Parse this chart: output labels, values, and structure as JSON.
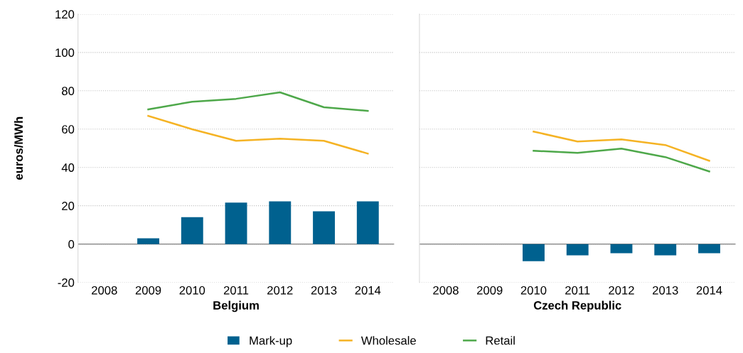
{
  "chart_data": [
    {
      "type": "bar",
      "xlabel": "Belgium",
      "ylabel": "euros/MWh",
      "categories": [
        "2008",
        "2009",
        "2010",
        "2011",
        "2012",
        "2013",
        "2014"
      ],
      "ylim": [
        -20,
        120
      ],
      "yticks": [
        -20,
        0,
        20,
        40,
        60,
        80,
        100,
        120
      ],
      "grid": "y",
      "legend": "bottom",
      "ref_lines": [
        {
          "axis": "y",
          "value": 0,
          "color": "#7f7f7f"
        }
      ],
      "series": [
        {
          "name": "Mark-up",
          "color": "#00618f",
          "values": [
            null,
            3,
            14,
            21.6,
            22.3,
            17.1,
            22.3
          ]
        },
        {
          "name": "Wholesale",
          "type": "line",
          "color": "#f5b324",
          "values": [
            null,
            66.9,
            59.9,
            53.9,
            55,
            53.9,
            47.2
          ]
        },
        {
          "name": "Retail",
          "type": "line",
          "color": "#4ea84a",
          "values": [
            null,
            70.3,
            74.3,
            75.8,
            79.2,
            71.4,
            69.5
          ]
        }
      ]
    },
    {
      "type": "bar",
      "xlabel": "Czech Republic",
      "categories": [
        "2008",
        "2009",
        "2010",
        "2011",
        "2012",
        "2013",
        "2014"
      ],
      "ylim": [
        -20,
        120
      ],
      "yticks": [
        -20,
        0,
        20,
        40,
        60,
        80,
        100,
        120
      ],
      "grid": "y",
      "tick_labels": "x",
      "ref_lines": [
        {
          "axis": "y",
          "value": 0,
          "color": "#7f7f7f"
        }
      ],
      "series": [
        {
          "name": "Mark-up",
          "color": "#00618f",
          "values": [
            null,
            null,
            -8.9,
            -5.9,
            -4.8,
            -5.9,
            -4.8
          ]
        },
        {
          "name": "Wholesale",
          "type": "line",
          "color": "#f5b324",
          "values": [
            null,
            null,
            58.7,
            53.5,
            54.6,
            51.7,
            43.5
          ]
        },
        {
          "name": "Retail",
          "type": "line",
          "color": "#4ea84a",
          "values": [
            null,
            null,
            48.7,
            47.6,
            49.8,
            45.4,
            37.9
          ]
        }
      ]
    }
  ]
}
